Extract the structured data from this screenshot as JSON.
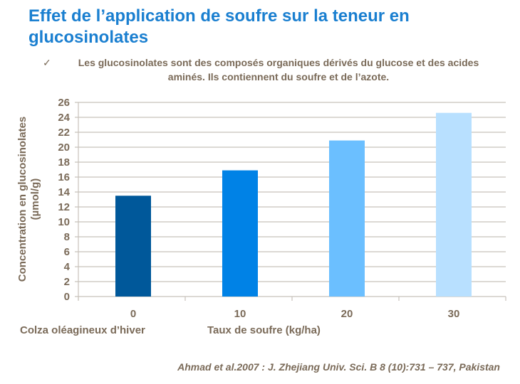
{
  "title": "Effet de l’application de soufre sur la teneur en glucosinolates",
  "bullet": {
    "icon": "check-mark-icon",
    "symbol": "✓",
    "text": "Les glucosinolates sont des composés organiques dérivés du glucose et des acides aminés. Ils contiennent du soufre et de l’azote."
  },
  "chart_data": {
    "type": "bar",
    "categories": [
      "0",
      "10",
      "20",
      "30"
    ],
    "values": [
      13.5,
      16.9,
      20.9,
      24.6
    ],
    "colors": [
      "#00589A",
      "#0082E6",
      "#6BBFFF",
      "#B8E0FF"
    ],
    "xlabel": "Taux de soufre (kg/ha)",
    "crop_label": "Colza oléagineux d’hiver",
    "ylabel": "Concentration en glucosinolates (µmol/g)",
    "ylim": [
      0,
      26
    ],
    "yticks": [
      "0",
      "2",
      "4",
      "6",
      "8",
      "10",
      "12",
      "14",
      "16",
      "18",
      "20",
      "22",
      "24",
      "26"
    ],
    "grid": true
  },
  "citation": "Ahmad et al.2007 : J. Zhejiang Univ. Sci. B 8 (10):731 – 737, Pakistan"
}
